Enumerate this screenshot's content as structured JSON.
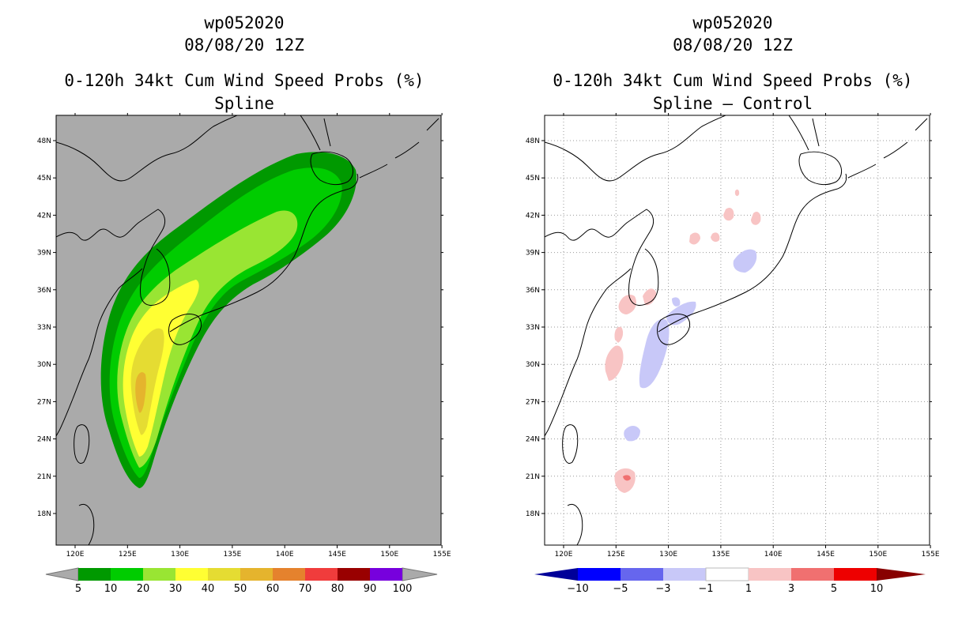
{
  "left_panel": {
    "title_storm": "wp052020",
    "title_date": "08/08/20 12Z",
    "title_product": "0-120h 34kt Cum Wind Speed Probs (%)",
    "title_subtitle": "Spline",
    "background_color": "#aaaaaa",
    "colorbar": {
      "labels": [
        "5",
        "10",
        "20",
        "30",
        "40",
        "50",
        "60",
        "70",
        "80",
        "90",
        "100"
      ],
      "colors": [
        "#009900",
        "#00cc00",
        "#99e533",
        "#ffff33",
        "#e5dc32",
        "#e5b42d",
        "#e5822d",
        "#f03c3c",
        "#990000",
        "#7700dd"
      ]
    }
  },
  "right_panel": {
    "title_storm": "wp052020",
    "title_date": "08/08/20 12Z",
    "title_product": "0-120h 34kt Cum Wind Speed Probs (%)",
    "title_subtitle": "Spline – Control",
    "background_color": "#ffffff",
    "colorbar": {
      "labels": [
        "−10",
        "−5",
        "−3",
        "−1",
        "1",
        "3",
        "5",
        "10"
      ],
      "colors": [
        "#0000ff",
        "#6666ee",
        "#c8c8f8",
        "#ffffff",
        "#f8c4c4",
        "#f07070",
        "#ee0000"
      ],
      "end_low": "#000099",
      "end_high": "#880000"
    }
  },
  "axes": {
    "lon_labels": [
      "120E",
      "125E",
      "130E",
      "135E",
      "140E",
      "145E",
      "150E",
      "155E"
    ],
    "lat_labels": [
      "48N",
      "45N",
      "42N",
      "39N",
      "36N",
      "33N",
      "30N",
      "27N",
      "24N",
      "21N",
      "18N"
    ]
  }
}
